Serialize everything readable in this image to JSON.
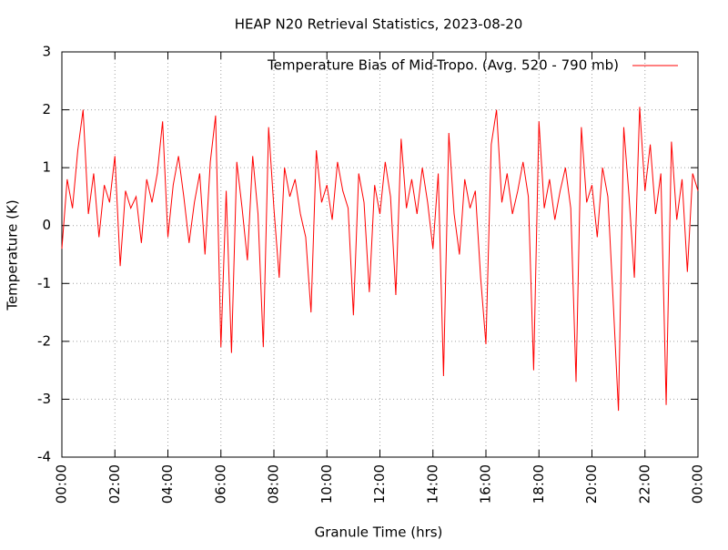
{
  "chart_data": {
    "type": "line",
    "title": "HEAP N20 Retrieval Statistics, 2023-08-20",
    "xlabel": "Granule Time (hrs)",
    "ylabel": "Temperature (K)",
    "xlim": [
      0,
      24
    ],
    "ylim": [
      -4,
      3
    ],
    "xticks": [
      {
        "value": 0,
        "label": "00:00"
      },
      {
        "value": 2,
        "label": "02:00"
      },
      {
        "value": 4,
        "label": "04:00"
      },
      {
        "value": 6,
        "label": "06:00"
      },
      {
        "value": 8,
        "label": "08:00"
      },
      {
        "value": 10,
        "label": "10:00"
      },
      {
        "value": 12,
        "label": "12:00"
      },
      {
        "value": 14,
        "label": "14:00"
      },
      {
        "value": 16,
        "label": "16:00"
      },
      {
        "value": 18,
        "label": "18:00"
      },
      {
        "value": 20,
        "label": "20:00"
      },
      {
        "value": 22,
        "label": "22:00"
      },
      {
        "value": 24,
        "label": "00:00"
      }
    ],
    "yticks": [
      -4,
      -3,
      -2,
      -1,
      0,
      1,
      2,
      3
    ],
    "grid": true,
    "legend": "upper right",
    "x": [
      0,
      0.2,
      0.4,
      0.6,
      0.8,
      1,
      1.2,
      1.4,
      1.6,
      1.8,
      2,
      2.2,
      2.4,
      2.6,
      2.8,
      3,
      3.2,
      3.4,
      3.6,
      3.8,
      4,
      4.2,
      4.4,
      4.6,
      4.8,
      5,
      5.2,
      5.4,
      5.6,
      5.8,
      6,
      6.2,
      6.4,
      6.6,
      6.8,
      7,
      7.2,
      7.4,
      7.6,
      7.8,
      8,
      8.2,
      8.4,
      8.6,
      8.8,
      9,
      9.2,
      9.4,
      9.6,
      9.8,
      10,
      10.2,
      10.4,
      10.6,
      10.8,
      11,
      11.2,
      11.4,
      11.6,
      11.8,
      12,
      12.2,
      12.4,
      12.6,
      12.8,
      13,
      13.2,
      13.4,
      13.6,
      13.8,
      14,
      14.2,
      14.4,
      14.6,
      14.8,
      15,
      15.2,
      15.4,
      15.6,
      15.8,
      16,
      16.2,
      16.4,
      16.6,
      16.8,
      17,
      17.2,
      17.4,
      17.6,
      17.8,
      18,
      18.2,
      18.4,
      18.6,
      18.8,
      19,
      19.2,
      19.4,
      19.6,
      19.8,
      20,
      20.2,
      20.4,
      20.6,
      20.8,
      21,
      21.2,
      21.4,
      21.6,
      21.8,
      22,
      22.2,
      22.4,
      22.6,
      22.8,
      23,
      23.2,
      23.4,
      23.6,
      23.8,
      24
    ],
    "series": [
      {
        "name": "Temperature Bias of Mid-Tropo. (Avg. 520 - 790 mb)",
        "color": "#ff0000",
        "values": [
          -0.4,
          0.8,
          0.3,
          1.3,
          2.0,
          0.2,
          0.9,
          -0.2,
          0.7,
          0.4,
          1.2,
          -0.7,
          0.6,
          0.3,
          0.5,
          -0.3,
          0.8,
          0.4,
          0.9,
          1.8,
          -0.2,
          0.7,
          1.2,
          0.5,
          -0.3,
          0.4,
          0.9,
          -0.5,
          1.1,
          1.9,
          -2.1,
          0.6,
          -2.2,
          1.1,
          0.3,
          -0.6,
          1.2,
          0.2,
          -2.1,
          1.7,
          0.3,
          -0.9,
          1.0,
          0.5,
          0.8,
          0.2,
          -0.2,
          -1.5,
          1.3,
          0.4,
          0.7,
          0.1,
          1.1,
          0.6,
          0.3,
          -1.55,
          0.9,
          0.4,
          -1.15,
          0.7,
          0.2,
          1.1,
          0.5,
          -1.2,
          1.5,
          0.3,
          0.8,
          0.2,
          1.0,
          0.4,
          -0.4,
          0.9,
          -2.6,
          1.6,
          0.2,
          -0.5,
          0.8,
          0.3,
          0.6,
          -0.9,
          -2.05,
          1.4,
          2.0,
          0.4,
          0.9,
          0.2,
          0.6,
          1.1,
          0.5,
          -2.5,
          1.8,
          0.3,
          0.8,
          0.1,
          0.6,
          1.0,
          0.3,
          -2.7,
          1.7,
          0.4,
          0.7,
          -0.2,
          1.0,
          0.5,
          -1.3,
          -3.2,
          1.7,
          0.5,
          -0.9,
          2.05,
          0.6,
          1.4,
          0.2,
          0.9,
          -3.1,
          1.45,
          0.1,
          0.8,
          -0.8,
          0.9,
          0.6
        ]
      }
    ]
  }
}
